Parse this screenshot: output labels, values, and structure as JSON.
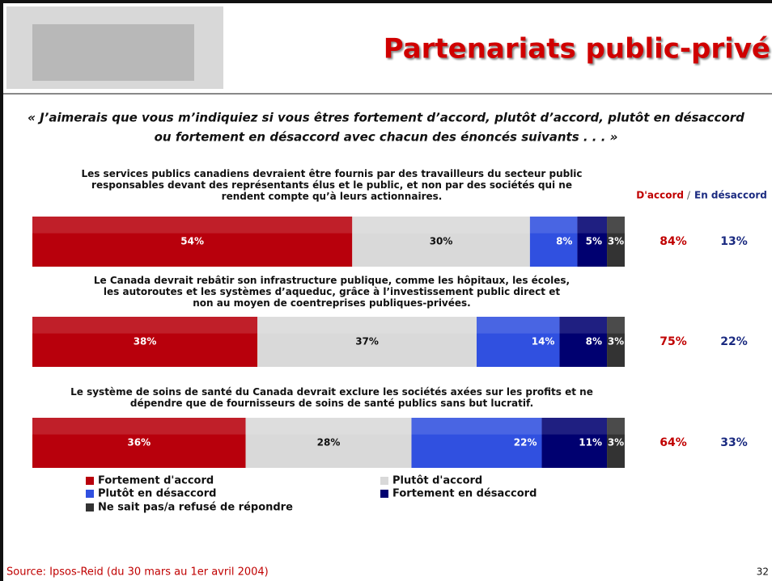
{
  "header": {
    "title": "Partenariats public-privé"
  },
  "question": [
    "« J’aimerais que vous m’indiquiez si vous êtres fortement d’accord, plutôt d’accord, plutôt en désaccord",
    "ou fortement en désaccord avec chacun des énoncés suivants . . . »"
  ],
  "chart_data": {
    "type": "bar",
    "orientation": "horizontal",
    "stacked": true,
    "categories": [
      "Les services publics canadiens devraient être fournis par des travailleurs du secteur public\nresponsables devant des représentants élus et le public, et non par des sociétés qui ne\nrendent compte qu’à leurs actionnaires.",
      "Le Canada devrait rebâtir son infrastructure publique, comme les hôpitaux, les écoles,\nles autoroutes et les systèmes d’aqueduc, grâce à l’investissement public direct et\nnon au moyen de coentreprises publiques-privées.",
      "Le système de soins de santé du Canada devrait exclure les sociétés axées sur les profits et ne\ndépendre que de fournisseurs de soins de santé publics sans but lucratif."
    ],
    "series": [
      {
        "name": "Fortement d'accord",
        "color": "#b8000c",
        "values": [
          54,
          38,
          36
        ],
        "value_labels": [
          "54%",
          "38%",
          "36%"
        ]
      },
      {
        "name": "Plutôt d'accord",
        "color": "#d9d9d9",
        "values": [
          30,
          37,
          28
        ],
        "value_labels": [
          "30%",
          "37%",
          "28%"
        ]
      },
      {
        "name": "Plutôt en désaccord",
        "color": "#3050e0",
        "values": [
          8,
          14,
          22
        ],
        "value_labels": [
          "8%",
          "14%",
          "22%"
        ]
      },
      {
        "name": "Fortement en désaccord",
        "color": "#000070",
        "values": [
          5,
          8,
          11
        ],
        "value_labels": [
          "5%",
          "8%",
          "11%"
        ]
      },
      {
        "name": "Ne sait pas/a refusé de répondre",
        "color": "#333333",
        "values": [
          3,
          3,
          3
        ],
        "value_labels": [
          "3%",
          "3%",
          "3%"
        ]
      }
    ],
    "xlim": [
      0,
      100
    ],
    "totals": [
      {
        "name": "D'accord",
        "color": "#c00000",
        "values": [
          84,
          75,
          64
        ],
        "value_labels": [
          "84%",
          "75%",
          "64%"
        ]
      },
      {
        "name": "En désaccord",
        "color": "#1a2a80",
        "values": [
          13,
          22,
          33
        ],
        "value_labels": [
          "13%",
          "22%",
          "33%"
        ]
      }
    ],
    "totals_separator": "/"
  },
  "footer": {
    "source": "Source: Ipsos-Reid (du 30 mars au 1er avril 2004)",
    "page_number": "32"
  }
}
